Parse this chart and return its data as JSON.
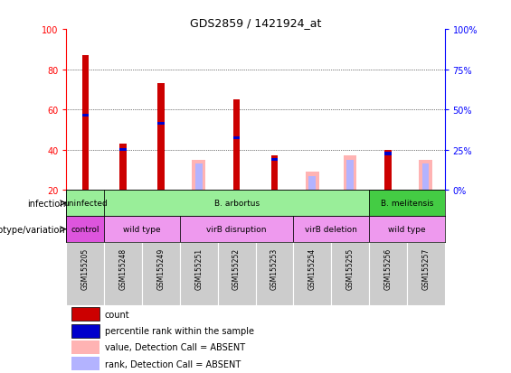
{
  "title": "GDS2859 / 1421924_at",
  "samples": [
    "GSM155205",
    "GSM155248",
    "GSM155249",
    "GSM155251",
    "GSM155252",
    "GSM155253",
    "GSM155254",
    "GSM155255",
    "GSM155256",
    "GSM155257"
  ],
  "count_values": [
    87,
    43,
    73,
    0,
    65,
    37,
    0,
    0,
    40,
    0
  ],
  "percentile_values": [
    57,
    40,
    53,
    0,
    46,
    35,
    0,
    0,
    38,
    0
  ],
  "absent_value_values": [
    0,
    0,
    0,
    35,
    0,
    0,
    29,
    37,
    0,
    35
  ],
  "absent_rank_values": [
    0,
    0,
    0,
    33,
    0,
    0,
    27,
    35,
    0,
    33
  ],
  "ylim": [
    20,
    100
  ],
  "yticks_left": [
    20,
    40,
    60,
    80,
    100
  ],
  "yticks_right_labels": [
    "0%",
    "25%",
    "50%",
    "75%",
    "100%"
  ],
  "bar_color_red": "#cc0000",
  "bar_color_blue": "#0000cc",
  "bar_color_pink": "#ffb3b3",
  "bar_color_lightblue": "#b3b3ff",
  "bg_color": "#ffffff",
  "sample_bg_color": "#cccccc",
  "infection_groups": [
    {
      "label": "uninfected",
      "start": 0,
      "end": 1,
      "color": "#99ee99"
    },
    {
      "label": "B. arbortus",
      "start": 1,
      "end": 8,
      "color": "#99ee99"
    },
    {
      "label": "B. melitensis",
      "start": 8,
      "end": 10,
      "color": "#44cc44"
    }
  ],
  "genotype_groups": [
    {
      "label": "control",
      "start": 0,
      "end": 1,
      "color": "#dd55dd"
    },
    {
      "label": "wild type",
      "start": 1,
      "end": 3,
      "color": "#ee99ee"
    },
    {
      "label": "virB disruption",
      "start": 3,
      "end": 6,
      "color": "#ee99ee"
    },
    {
      "label": "virB deletion",
      "start": 6,
      "end": 8,
      "color": "#ee99ee"
    },
    {
      "label": "wild type",
      "start": 8,
      "end": 10,
      "color": "#ee99ee"
    }
  ],
  "legend_items": [
    {
      "label": "count",
      "color": "#cc0000"
    },
    {
      "label": "percentile rank within the sample",
      "color": "#0000cc"
    },
    {
      "label": "value, Detection Call = ABSENT",
      "color": "#ffb3b3"
    },
    {
      "label": "rank, Detection Call = ABSENT",
      "color": "#b3b3ff"
    }
  ],
  "left_labels": [
    "infection",
    "genotype/variation"
  ]
}
